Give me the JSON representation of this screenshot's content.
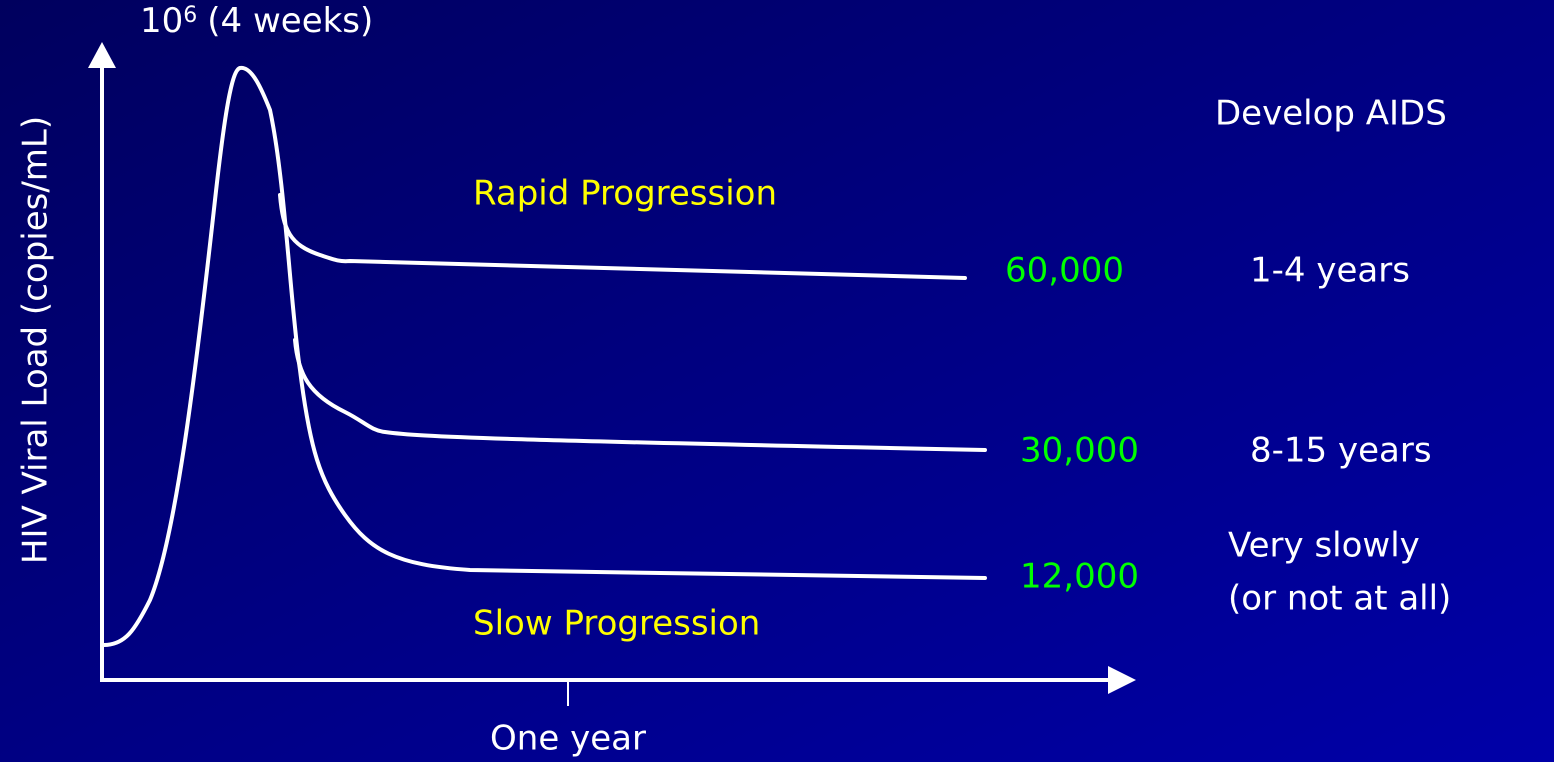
{
  "peak_label": {
    "base": "10",
    "exponent": "6",
    "note": "(4 weeks)"
  },
  "y_axis_label": "HIV Viral Load (copies/mL)",
  "x_tick_label": "One year",
  "curve_labels": {
    "rapid": "Rapid Progression",
    "slow": "Slow Progression"
  },
  "outcome_header": "Develop AIDS",
  "levels": [
    {
      "viral_load": "60,000",
      "outcome": [
        "1-4 years"
      ]
    },
    {
      "viral_load": "30,000",
      "outcome": [
        "8-15 years"
      ]
    },
    {
      "viral_load": "12,000",
      "outcome": [
        "Very slowly",
        "(or not at all)"
      ]
    }
  ]
}
